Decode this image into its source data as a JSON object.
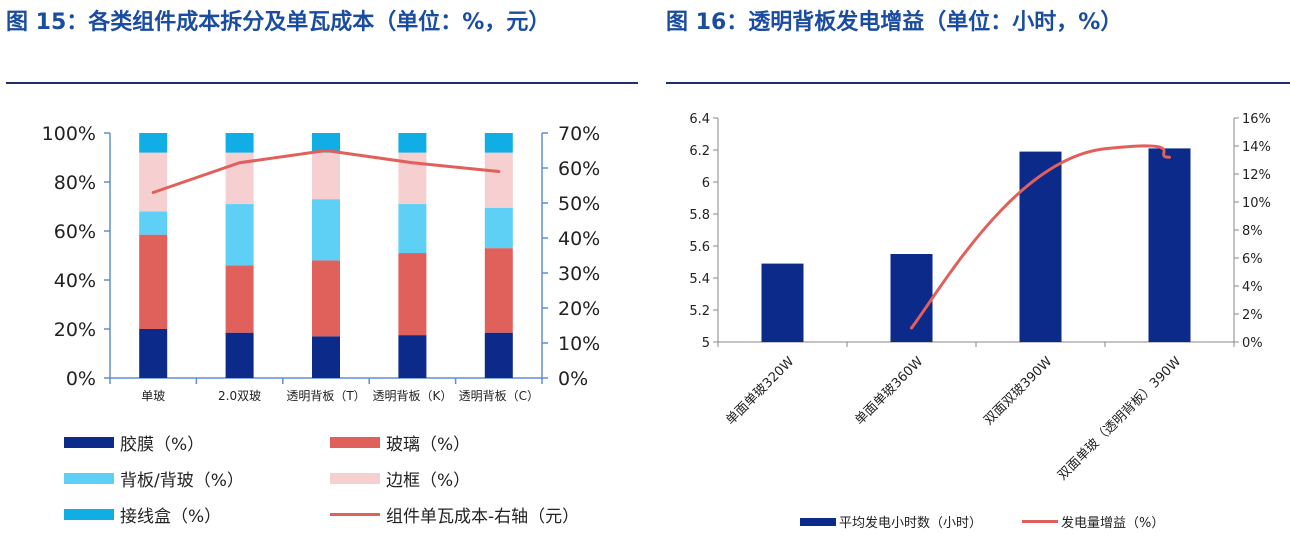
{
  "figure15": {
    "title": "图 15：各类组件成本拆分及单瓦成本（单位：%，元）",
    "chart_data": {
      "type": "bar",
      "stacked": true,
      "categories": [
        "单玻",
        "2.0双玻",
        "透明背板（T）",
        "透明背板（K）",
        "透明背板（C）"
      ],
      "series": [
        {
          "name": "胶膜（%）",
          "color": "#0b2a8a",
          "values": [
            20,
            18.5,
            17,
            17.5,
            18.5
          ]
        },
        {
          "name": "玻璃（%）",
          "color": "#e0605c",
          "values": [
            38.5,
            27.5,
            31,
            33.5,
            34.5
          ]
        },
        {
          "name": "背板/背玻（%）",
          "color": "#5fd0f5",
          "values": [
            9.5,
            25,
            25,
            20,
            16.5
          ]
        },
        {
          "name": "边框（%）",
          "color": "#f6cfd0",
          "values": [
            24,
            21,
            19,
            21,
            22.5
          ]
        },
        {
          "name": "接线盒（%）",
          "color": "#11aee5",
          "values": [
            8,
            8,
            8,
            8,
            8
          ]
        }
      ],
      "line": {
        "name": "组件单瓦成本-右轴（元）",
        "color": "#e0605c",
        "axis": "right",
        "values": [
          53,
          61.5,
          65,
          61.5,
          59
        ]
      },
      "left_axis": {
        "min": 0,
        "max": 100,
        "ticks": [
          "0%",
          "20%",
          "40%",
          "60%",
          "80%",
          "100%"
        ]
      },
      "right_axis": {
        "min": 0,
        "max": 70,
        "ticks": [
          "0%",
          "10%",
          "20%",
          "30%",
          "40%",
          "50%",
          "60%",
          "70%"
        ]
      }
    }
  },
  "figure16": {
    "title": "图 16：透明背板发电增益（单位：小时，%）",
    "chart_data": {
      "type": "bar",
      "categories": [
        "单面单玻320W",
        "单面单玻360W",
        "双面双玻390W",
        "双面单玻（透明背板）390W"
      ],
      "bar_series": {
        "name": "平均发电小时数（小时）",
        "color": "#0b2a8a",
        "values": [
          5.49,
          5.55,
          6.19,
          6.21
        ]
      },
      "line_series": {
        "name": "发电量增益（%）",
        "color": "#e0605c",
        "axis": "right",
        "values": [
          1,
          13.8,
          13.2
        ],
        "categories_index": [
          1,
          2.5,
          3
        ]
      },
      "left_axis": {
        "min": 5,
        "max": 6.4,
        "ticks": [
          "5",
          "5.2",
          "5.4",
          "5.6",
          "5.8",
          "6",
          "6.2",
          "6.4"
        ]
      },
      "right_axis": {
        "min": 0,
        "max": 16,
        "ticks": [
          "0%",
          "2%",
          "4%",
          "6%",
          "8%",
          "10%",
          "12%",
          "14%",
          "16%"
        ]
      }
    }
  }
}
